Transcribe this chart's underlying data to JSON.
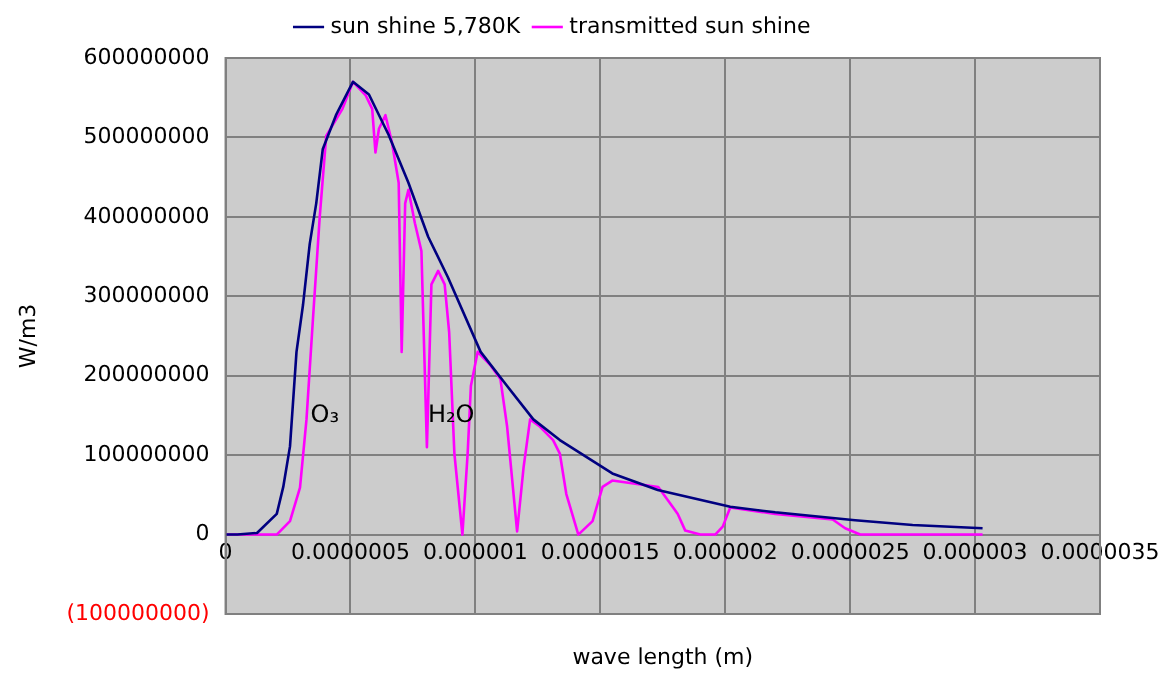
{
  "chart_data": {
    "type": "line",
    "xlabel": "wave length (m)",
    "ylabel": "W/m3",
    "xlim": [
      0,
      3.5e-06
    ],
    "xticks": [
      0,
      {
        "value": 5e-07,
        "label": "0.0000005"
      },
      {
        "value": 1e-06,
        "label": "0.000001"
      },
      {
        "value": 1.5e-06,
        "label": "0.0000015"
      },
      {
        "value": 2e-06,
        "label": "0.000002"
      },
      {
        "value": 2.5e-06,
        "label": "0.0000025"
      },
      {
        "value": 3e-06,
        "label": "0.000003"
      },
      {
        "value": 3.5e-06,
        "label": "0.0000035"
      }
    ],
    "ylim": [
      -100000000,
      600000000
    ],
    "yticks": [
      {
        "value": -100000000,
        "label": "(100000000)"
      },
      0,
      100000000,
      200000000,
      300000000,
      400000000,
      500000000,
      600000000
    ],
    "grid": true,
    "legend": "top",
    "marker": "none",
    "line_style": "solid",
    "annotations": [
      {
        "text": "O₃",
        "x": 3.4e-07,
        "y": 150000000
      },
      {
        "text": "H₂O",
        "x": 8.1e-07,
        "y": 150000000
      }
    ],
    "series": [
      {
        "name": "sun shine 5,780K",
        "color": "#000080",
        "x": [
          0,
          4.7e-08,
          1.26e-07,
          2.05e-07,
          2.31e-07,
          2.58e-07,
          2.84e-07,
          3.1e-07,
          3.37e-07,
          3.63e-07,
          3.89e-07,
          4.42e-07,
          5.1e-07,
          5.74e-07,
          6.53e-07,
          7.32e-07,
          8.11e-07,
          8.9e-07,
          1.021e-06,
          1.127e-06,
          1.232e-06,
          1.338e-06,
          1.548e-06,
          1.73e-06,
          2.02e-06,
          2.2e-06,
          2.52e-06,
          2.75e-06,
          3.03e-06
        ],
        "values": [
          0,
          0,
          2000000,
          26000000,
          60000000,
          111000000,
          230000000,
          289000000,
          366000000,
          417000000,
          485000000,
          528000000,
          570000000,
          554000000,
          503000000,
          443000000,
          375000000,
          324000000,
          230000000,
          187000000,
          145000000,
          119000000,
          77000000,
          56000000,
          35000000,
          28000000,
          18000000,
          12000000,
          8000000
        ]
      },
      {
        "name": "transmitted sun shine",
        "color": "#ff00ff",
        "x": [
          0,
          1.26e-07,
          2.05e-07,
          2.58e-07,
          2.98e-07,
          3.24e-07,
          3.5e-07,
          3.77e-07,
          4.03e-07,
          4.68e-07,
          5.1e-07,
          5.61e-07,
          5.87e-07,
          6e-07,
          6.14e-07,
          6.4e-07,
          6.66e-07,
          6.93e-07,
          7.05e-07,
          7.19e-07,
          7.32e-07,
          7.58e-07,
          7.84e-07,
          8.06e-07,
          8.24e-07,
          8.51e-07,
          8.77e-07,
          8.95e-07,
          9.16e-07,
          9.48e-07,
          9.69e-07,
          9.82e-07,
          1.009e-06,
          1.061e-06,
          1.1e-06,
          1.127e-06,
          1.167e-06,
          1.193e-06,
          1.219e-06,
          1.258e-06,
          1.311e-06,
          1.338e-06,
          1.364e-06,
          1.412e-06,
          1.469e-06,
          1.509e-06,
          1.548e-06,
          1.732e-06,
          1.81e-06,
          1.84e-06,
          1.9e-06,
          1.96e-06,
          1.99e-06,
          2.02e-06,
          2.2e-06,
          2.43e-06,
          2.48e-06,
          2.54e-06,
          3.03e-06
        ],
        "values": [
          0,
          0,
          0,
          17000000,
          59000000,
          145000000,
          272000000,
          400000000,
          502000000,
          536000000,
          570000000,
          553000000,
          536000000,
          481000000,
          511000000,
          528000000,
          494000000,
          443000000,
          230000000,
          417000000,
          434000000,
          392000000,
          357000000,
          110000000,
          315000000,
          332000000,
          315000000,
          255000000,
          102000000,
          0,
          102000000,
          187000000,
          230000000,
          213000000,
          196000000,
          136000000,
          4000000,
          85000000,
          145000000,
          136000000,
          119000000,
          102000000,
          51000000,
          0,
          17000000,
          60000000,
          68000000,
          60000000,
          26000000,
          5000000,
          0,
          0,
          10000000,
          34000000,
          26000000,
          19000000,
          8000000,
          0,
          0
        ]
      }
    ]
  }
}
